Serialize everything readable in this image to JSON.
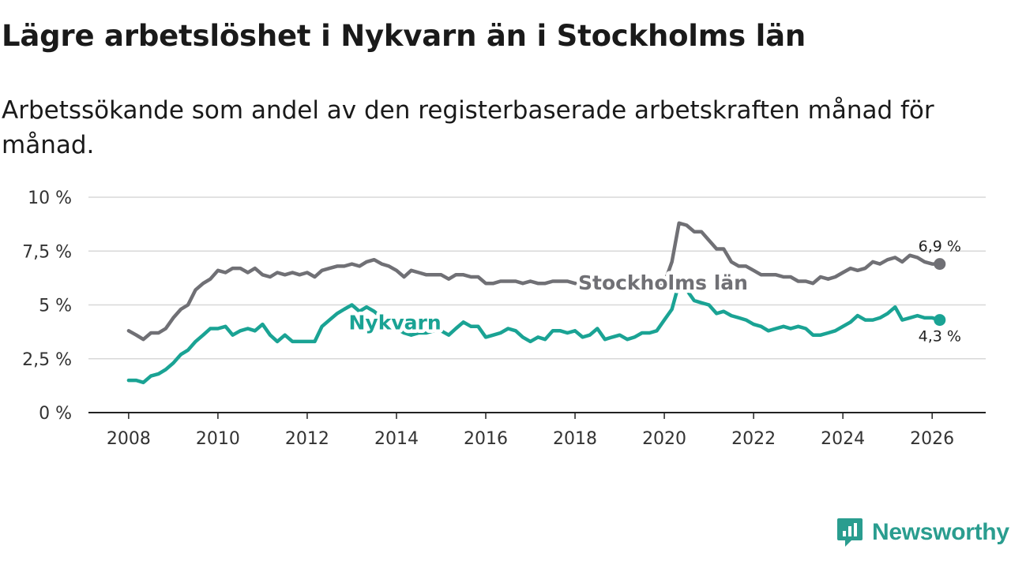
{
  "title": "Lägre arbetslöshet i Nykvarn än i Stockholms län",
  "subtitle": "Arbetssökande som andel av den registerbaserade arbetskraften månad för månad.",
  "brand": {
    "name": "Newsworthy",
    "color": "#2a9d8f"
  },
  "chart_data": {
    "type": "line",
    "title": "Lägre arbetslöshet i Nykvarn än i Stockholms län",
    "subtitle": "Arbetssökande som andel av den registerbaserade arbetskraften månad för månad.",
    "xlabel": "",
    "ylabel": "",
    "xlim": [
      2007.1,
      2027.2
    ],
    "ylim": [
      0,
      10
    ],
    "grid": true,
    "x_ticks": [
      2008,
      2010,
      2012,
      2014,
      2016,
      2018,
      2020,
      2022,
      2024,
      2026
    ],
    "x_tick_labels": [
      "2008",
      "2010",
      "2012",
      "2014",
      "2016",
      "2018",
      "2020",
      "2022",
      "2024",
      "2026"
    ],
    "y_ticks": [
      0,
      2.5,
      5,
      7.5,
      10
    ],
    "y_tick_labels": [
      "0 %",
      "2,5 %",
      "5 %",
      "7,5 %",
      "10 %"
    ],
    "series": [
      {
        "name": "Stockholms län",
        "color": "#707075",
        "end_label": "6,9 %",
        "x": [
          2008.0,
          2008.17,
          2008.33,
          2008.5,
          2008.67,
          2008.83,
          2009.0,
          2009.17,
          2009.33,
          2009.5,
          2009.67,
          2009.83,
          2010.0,
          2010.17,
          2010.33,
          2010.5,
          2010.67,
          2010.83,
          2011.0,
          2011.17,
          2011.33,
          2011.5,
          2011.67,
          2011.83,
          2012.0,
          2012.17,
          2012.33,
          2012.5,
          2012.67,
          2012.83,
          2013.0,
          2013.17,
          2013.33,
          2013.5,
          2013.67,
          2013.83,
          2014.0,
          2014.17,
          2014.33,
          2014.5,
          2014.67,
          2014.83,
          2015.0,
          2015.17,
          2015.33,
          2015.5,
          2015.67,
          2015.83,
          2016.0,
          2016.17,
          2016.33,
          2016.5,
          2016.67,
          2016.83,
          2017.0,
          2017.17,
          2017.33,
          2017.5,
          2017.67,
          2017.83,
          2018.0,
          2018.17,
          2018.33,
          2018.5,
          2018.67,
          2018.83,
          2019.0,
          2019.17,
          2019.33,
          2019.5,
          2019.67,
          2019.83,
          2020.0,
          2020.17,
          2020.33,
          2020.5,
          2020.67,
          2020.83,
          2021.0,
          2021.17,
          2021.33,
          2021.5,
          2021.67,
          2021.83,
          2022.0,
          2022.17,
          2022.33,
          2022.5,
          2022.67,
          2022.83,
          2023.0,
          2023.17,
          2023.33,
          2023.5,
          2023.67,
          2023.83,
          2024.0,
          2024.17,
          2024.33,
          2024.5,
          2024.67,
          2024.83,
          2025.0,
          2025.17,
          2025.33,
          2025.5,
          2025.67,
          2025.83,
          2026.0,
          2026.17
        ],
        "values": [
          3.8,
          3.6,
          3.4,
          3.7,
          3.7,
          3.9,
          4.4,
          4.8,
          5.0,
          5.7,
          6.0,
          6.2,
          6.6,
          6.5,
          6.7,
          6.7,
          6.5,
          6.7,
          6.4,
          6.3,
          6.5,
          6.4,
          6.5,
          6.4,
          6.5,
          6.3,
          6.6,
          6.7,
          6.8,
          6.8,
          6.9,
          6.8,
          7.0,
          7.1,
          6.9,
          6.8,
          6.6,
          6.3,
          6.6,
          6.5,
          6.4,
          6.4,
          6.4,
          6.2,
          6.4,
          6.4,
          6.3,
          6.3,
          6.0,
          6.0,
          6.1,
          6.1,
          6.1,
          6.0,
          6.1,
          6.0,
          6.0,
          6.1,
          6.1,
          6.1,
          6.0,
          6.0,
          5.9,
          5.9,
          5.8,
          5.9,
          5.8,
          5.7,
          5.8,
          5.8,
          5.7,
          5.8,
          6.0,
          7.0,
          8.8,
          8.7,
          8.4,
          8.4,
          8.0,
          7.6,
          7.6,
          7.0,
          6.8,
          6.8,
          6.6,
          6.4,
          6.4,
          6.4,
          6.3,
          6.3,
          6.1,
          6.1,
          6.0,
          6.3,
          6.2,
          6.3,
          6.5,
          6.7,
          6.6,
          6.7,
          7.0,
          6.9,
          7.1,
          7.2,
          7.0,
          7.3,
          7.2,
          7.0,
          6.9,
          6.9
        ]
      },
      {
        "name": "Nykvarn",
        "color": "#1aa394",
        "end_label": "4,3 %",
        "x": [
          2008.0,
          2008.17,
          2008.33,
          2008.5,
          2008.67,
          2008.83,
          2009.0,
          2009.17,
          2009.33,
          2009.5,
          2009.67,
          2009.83,
          2010.0,
          2010.17,
          2010.33,
          2010.5,
          2010.67,
          2010.83,
          2011.0,
          2011.17,
          2011.33,
          2011.5,
          2011.67,
          2011.83,
          2012.0,
          2012.17,
          2012.33,
          2012.5,
          2012.67,
          2012.83,
          2013.0,
          2013.17,
          2013.33,
          2013.5,
          2013.67,
          2013.83,
          2014.0,
          2014.17,
          2014.33,
          2014.5,
          2014.67,
          2014.83,
          2015.0,
          2015.17,
          2015.33,
          2015.5,
          2015.67,
          2015.83,
          2016.0,
          2016.17,
          2016.33,
          2016.5,
          2016.67,
          2016.83,
          2017.0,
          2017.17,
          2017.33,
          2017.5,
          2017.67,
          2017.83,
          2018.0,
          2018.17,
          2018.33,
          2018.5,
          2018.67,
          2018.83,
          2019.0,
          2019.17,
          2019.33,
          2019.5,
          2019.67,
          2019.83,
          2020.0,
          2020.17,
          2020.33,
          2020.5,
          2020.67,
          2020.83,
          2021.0,
          2021.17,
          2021.33,
          2021.5,
          2021.67,
          2021.83,
          2022.0,
          2022.17,
          2022.33,
          2022.5,
          2022.67,
          2022.83,
          2023.0,
          2023.17,
          2023.33,
          2023.5,
          2023.67,
          2023.83,
          2024.0,
          2024.17,
          2024.33,
          2024.5,
          2024.67,
          2024.83,
          2025.0,
          2025.17,
          2025.33,
          2025.5,
          2025.67,
          2025.83,
          2026.0,
          2026.17
        ],
        "values": [
          1.5,
          1.5,
          1.4,
          1.7,
          1.8,
          2.0,
          2.3,
          2.7,
          2.9,
          3.3,
          3.6,
          3.9,
          3.9,
          4.0,
          3.6,
          3.8,
          3.9,
          3.8,
          4.1,
          3.6,
          3.3,
          3.6,
          3.3,
          3.3,
          3.3,
          3.3,
          4.0,
          4.3,
          4.6,
          4.8,
          5.0,
          4.7,
          4.9,
          4.7,
          4.4,
          4.2,
          3.9,
          3.7,
          3.6,
          3.7,
          3.7,
          3.8,
          3.8,
          3.6,
          3.9,
          4.2,
          4.0,
          4.0,
          3.5,
          3.6,
          3.7,
          3.9,
          3.8,
          3.5,
          3.3,
          3.5,
          3.4,
          3.8,
          3.8,
          3.7,
          3.8,
          3.5,
          3.6,
          3.9,
          3.4,
          3.5,
          3.6,
          3.4,
          3.5,
          3.7,
          3.7,
          3.8,
          4.3,
          4.8,
          6.0,
          5.7,
          5.2,
          5.1,
          5.0,
          4.6,
          4.7,
          4.5,
          4.4,
          4.3,
          4.1,
          4.0,
          3.8,
          3.9,
          4.0,
          3.9,
          4.0,
          3.9,
          3.6,
          3.6,
          3.7,
          3.8,
          4.0,
          4.2,
          4.5,
          4.3,
          4.3,
          4.4,
          4.6,
          4.9,
          4.3,
          4.4,
          4.5,
          4.4,
          4.4,
          4.3
        ]
      }
    ]
  }
}
